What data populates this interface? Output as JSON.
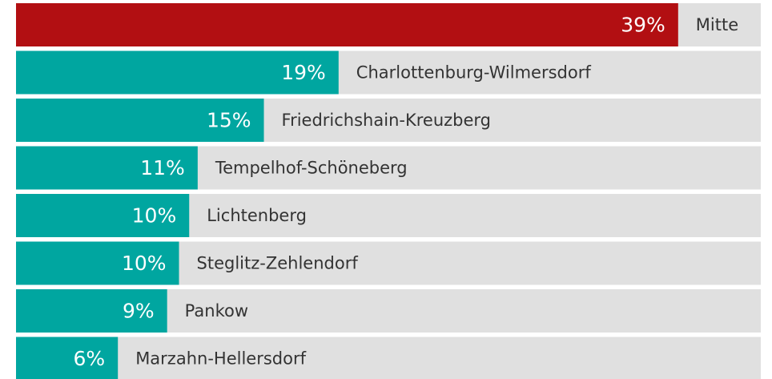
{
  "chart_data": {
    "type": "bar",
    "categories": [
      "Mitte",
      "Charlottenburg-Wilmersdorf",
      "Friedrichshain-Kreuzberg",
      "Tempelhof-Schöneberg",
      "Lichtenberg",
      "Steglitz-Zehlendorf",
      "Pankow",
      "Marzahn-Hellersdorf"
    ],
    "values": [
      39,
      19,
      14.6,
      10.7,
      10.2,
      9.6,
      8.9,
      6
    ],
    "value_labels": [
      "39%",
      "19%",
      "15%",
      "11%",
      "10%",
      "10%",
      "9%",
      "6%"
    ],
    "colors": [
      "#b20f12",
      "#00a6a0",
      "#00a6a0",
      "#00a6a0",
      "#00a6a0",
      "#00a6a0",
      "#00a6a0",
      "#00a6a0"
    ],
    "track_color": "#e0e0e0"
  }
}
